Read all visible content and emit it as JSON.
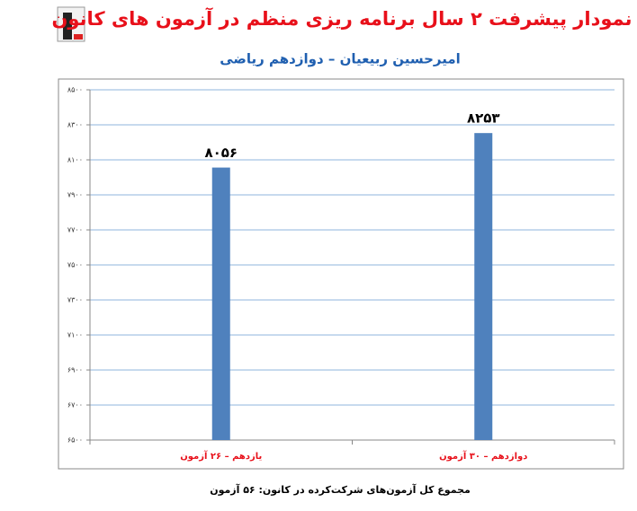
{
  "chart_data": {
    "type": "bar",
    "title": "نمودار پیشرفت ۲ سال برنامه ریزی منظم در آزمون های کانون",
    "subtitle": "امیرحسین ربیعیان – دوازدهم ریاضی",
    "footer": "مجموع کل آزمون‌های شرکت‌کرده در کانون: ۵۶ آزمون",
    "categories": [
      "یازدهم – ۲۶ آزمون",
      "دوازدهم – ۳۰ آزمون"
    ],
    "values": [
      8056,
      8253
    ],
    "value_labels": [
      "۸۰۵۶",
      "۸۲۵۳"
    ],
    "color": "#4f81bd",
    "ylim": [
      6500,
      8500
    ],
    "yticks": [
      {
        "value": 8500,
        "label": "۸۵۰۰"
      },
      {
        "value": 8300,
        "label": "۸۳۰۰"
      },
      {
        "value": 8100,
        "label": "۸۱۰۰"
      },
      {
        "value": 7900,
        "label": "۷۹۰۰"
      },
      {
        "value": 7700,
        "label": "۷۷۰۰"
      },
      {
        "value": 7500,
        "label": "۷۵۰۰"
      },
      {
        "value": 7300,
        "label": "۷۳۰۰"
      },
      {
        "value": 7100,
        "label": "۷۱۰۰"
      },
      {
        "value": 6900,
        "label": "۶۹۰۰"
      },
      {
        "value": 6700,
        "label": "۶۷۰۰"
      },
      {
        "value": 6500,
        "label": "۶۵۰۰"
      }
    ],
    "grid": true
  }
}
